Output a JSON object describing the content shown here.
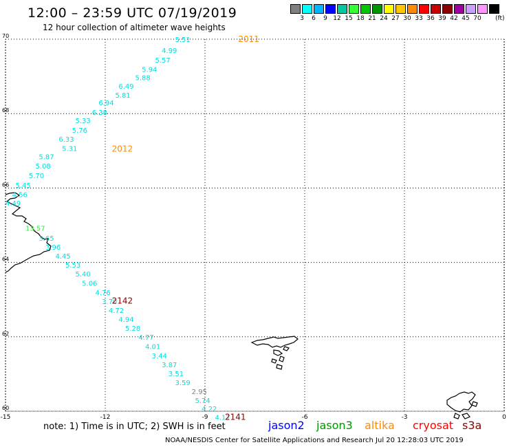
{
  "header": {
    "title": "12:00 – 23:59 UTC 07/19/2019",
    "subtitle": "12 hour collection of altimeter wave heights"
  },
  "legend": {
    "unit": "(ft)",
    "swatches": [
      {
        "color": "#808080",
        "label": ""
      },
      {
        "color": "#00ffff",
        "label": "3"
      },
      {
        "color": "#00b4ff",
        "label": "6"
      },
      {
        "color": "#0000ff",
        "label": "9"
      },
      {
        "color": "#00c8a0",
        "label": "12"
      },
      {
        "color": "#33ff33",
        "label": "15"
      },
      {
        "color": "#00c800",
        "label": "18"
      },
      {
        "color": "#009600",
        "label": "21"
      },
      {
        "color": "#ffff00",
        "label": "24"
      },
      {
        "color": "#ffc800",
        "label": "27"
      },
      {
        "color": "#ff8c00",
        "label": "30"
      },
      {
        "color": "#ff0000",
        "label": "33"
      },
      {
        "color": "#c80000",
        "label": "36"
      },
      {
        "color": "#8b0000",
        "label": "39"
      },
      {
        "color": "#a000a0",
        "label": "42"
      },
      {
        "color": "#c8a0ff",
        "label": "45"
      },
      {
        "color": "#ff96ff",
        "label": "70"
      },
      {
        "color": "#000000",
        "label": ""
      }
    ]
  },
  "axes": {
    "lon_ticks": [
      "-15",
      "-12",
      "-9",
      "-6",
      "-3",
      "0"
    ],
    "lat_ticks": [
      "70",
      "68",
      "66",
      "64",
      "62",
      "60"
    ]
  },
  "tracks": [
    {
      "lon": -9.9,
      "lat": 70.0,
      "label": "5.51",
      "color": "#00dddd"
    },
    {
      "lon": -10.3,
      "lat": 69.7,
      "label": "4.99",
      "color": "#00dddd"
    },
    {
      "lon": -10.5,
      "lat": 69.45,
      "label": "5.57",
      "color": "#00dddd"
    },
    {
      "lon": -10.9,
      "lat": 69.2,
      "label": "5.94",
      "color": "#00dddd"
    },
    {
      "lon": -11.1,
      "lat": 68.97,
      "label": "5.88",
      "color": "#00dddd"
    },
    {
      "lon": -11.6,
      "lat": 68.74,
      "label": "6.49",
      "color": "#00dddd"
    },
    {
      "lon": -11.7,
      "lat": 68.5,
      "label": "5.81",
      "color": "#00dddd"
    },
    {
      "lon": -12.2,
      "lat": 68.3,
      "label": "6.94",
      "color": "#00dddd"
    },
    {
      "lon": -12.4,
      "lat": 68.04,
      "label": "6.38",
      "color": "#00dddd"
    },
    {
      "lon": -12.9,
      "lat": 67.82,
      "label": "5.33",
      "color": "#00dddd"
    },
    {
      "lon": -13.0,
      "lat": 67.56,
      "label": "5.76",
      "color": "#00dddd"
    },
    {
      "lon": -13.4,
      "lat": 67.32,
      "label": "6.33",
      "color": "#00dddd"
    },
    {
      "lon": -13.3,
      "lat": 67.07,
      "label": "5.31",
      "color": "#00dddd"
    },
    {
      "lon": -14.0,
      "lat": 66.85,
      "label": "5.87",
      "color": "#00dddd"
    },
    {
      "lon": -14.1,
      "lat": 66.6,
      "label": "5.08",
      "color": "#00dddd"
    },
    {
      "lon": -14.3,
      "lat": 66.34,
      "label": "5.70",
      "color": "#00dddd"
    },
    {
      "lon": -14.7,
      "lat": 66.08,
      "label": "5.45",
      "color": "#00dddd"
    },
    {
      "lon": -14.8,
      "lat": 65.83,
      "label": "4.56",
      "color": "#00dddd"
    },
    {
      "lon": -15.0,
      "lat": 65.6,
      "label": "4.49",
      "color": "#00dddd"
    },
    {
      "lon": -14.4,
      "lat": 64.93,
      "label": "13.57",
      "color": "#33ee33"
    },
    {
      "lon": -14.0,
      "lat": 64.66,
      "label": "3.65",
      "color": "#00dddd"
    },
    {
      "lon": -13.8,
      "lat": 64.42,
      "label": "3.96",
      "color": "#00dddd"
    },
    {
      "lon": -13.5,
      "lat": 64.18,
      "label": "4.45",
      "color": "#00dddd"
    },
    {
      "lon": -13.2,
      "lat": 63.94,
      "label": "5.53",
      "color": "#00dddd"
    },
    {
      "lon": -12.9,
      "lat": 63.7,
      "label": "5.40",
      "color": "#00dddd"
    },
    {
      "lon": -12.7,
      "lat": 63.45,
      "label": "5.06",
      "color": "#00dddd"
    },
    {
      "lon": -12.3,
      "lat": 63.2,
      "label": "4.76",
      "color": "#00dddd"
    },
    {
      "lon": -12.1,
      "lat": 62.96,
      "label": "3.70",
      "color": "#00dddd"
    },
    {
      "lon": -11.9,
      "lat": 62.72,
      "label": "4.72",
      "color": "#00dddd"
    },
    {
      "lon": -11.6,
      "lat": 62.48,
      "label": "4.94",
      "color": "#00dddd"
    },
    {
      "lon": -11.4,
      "lat": 62.24,
      "label": "5.28",
      "color": "#00dddd"
    },
    {
      "lon": -11.0,
      "lat": 62.0,
      "label": "4.77",
      "color": "#00dddd"
    },
    {
      "lon": -10.8,
      "lat": 61.75,
      "label": "4.01",
      "color": "#00dddd"
    },
    {
      "lon": -10.6,
      "lat": 61.5,
      "label": "3.44",
      "color": "#00dddd"
    },
    {
      "lon": -10.3,
      "lat": 61.26,
      "label": "3.87",
      "color": "#00dddd"
    },
    {
      "lon": -10.1,
      "lat": 61.02,
      "label": "3.51",
      "color": "#00dddd"
    },
    {
      "lon": -9.9,
      "lat": 60.78,
      "label": "3.59",
      "color": "#00dddd"
    },
    {
      "lon": -9.4,
      "lat": 60.54,
      "label": "2.95",
      "color": "#808080"
    },
    {
      "lon": -9.3,
      "lat": 60.3,
      "label": "5.74",
      "color": "#00dddd"
    },
    {
      "lon": -9.1,
      "lat": 60.07,
      "label": "4.22",
      "color": "#00dddd"
    },
    {
      "lon": -8.7,
      "lat": 59.84,
      "label": "4.17",
      "color": "#00dddd"
    }
  ],
  "times": [
    {
      "lon": -8.0,
      "lat": 70.0,
      "label": "2011",
      "color": "#ff8c00"
    },
    {
      "lon": -11.8,
      "lat": 67.05,
      "label": "2012",
      "color": "#ff8c00"
    },
    {
      "lon": -11.8,
      "lat": 62.97,
      "label": "2142",
      "color": "#8b0000"
    },
    {
      "lon": -8.4,
      "lat": 59.84,
      "label": "2141",
      "color": "#8b0000"
    }
  ],
  "footer": {
    "note": "note: 1) Time is in UTC; 2) SWH is in feet",
    "satellites": [
      {
        "name": "jason2",
        "color": "#0000ff"
      },
      {
        "name": "jason3",
        "color": "#009600"
      },
      {
        "name": "altika",
        "color": "#ff8c00"
      },
      {
        "name": "cryosat",
        "color": "#ff0000"
      },
      {
        "name": "s3a",
        "color": "#8b0000"
      }
    ],
    "credit": "NOAA/NESDIS Center for Satellite Applications and Research    Jul 20 12:28:03 UTC 2019"
  }
}
